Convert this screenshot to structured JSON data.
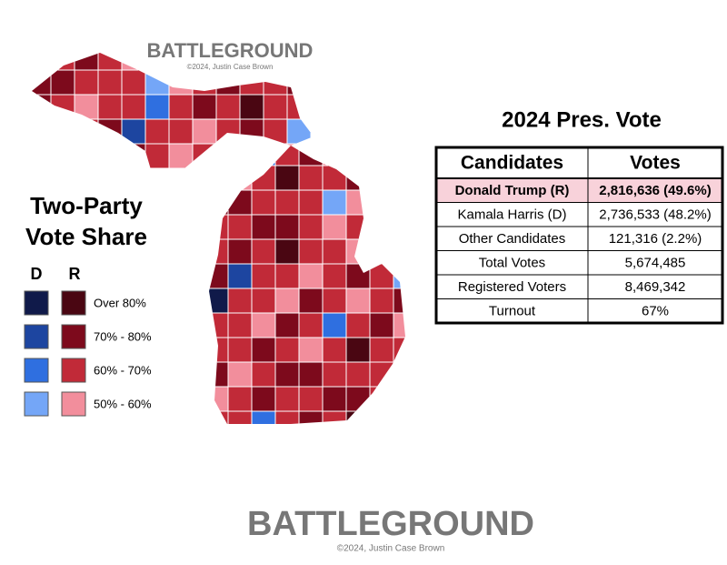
{
  "header": {
    "brand": "BATTLEGROUND",
    "credit": "©2024, Justin Case Brown"
  },
  "legend": {
    "title_lines": [
      "Two-Party",
      "Vote Share"
    ],
    "columns": [
      "D",
      "R"
    ],
    "rows": [
      {
        "label": "Over 80%",
        "d_color": "#101a4a",
        "r_color": "#4a0612"
      },
      {
        "label": "70% - 80%",
        "d_color": "#1d45a0",
        "r_color": "#7d0a1c"
      },
      {
        "label": "60% - 70%",
        "d_color": "#2f6fe0",
        "r_color": "#c12a38"
      },
      {
        "label": "50% - 60%",
        "d_color": "#74a6f7",
        "r_color": "#f28e9c"
      }
    ]
  },
  "table": {
    "title": "2024 Pres. Vote",
    "headers": [
      "Candidates",
      "Votes"
    ],
    "rows": [
      [
        "Donald Trump (R)",
        "2,816,636 (49.6%)"
      ],
      [
        "Kamala Harris (D)",
        "2,736,533 (48.2%)"
      ],
      [
        "Other Candidates",
        "121,316 (2.2%)"
      ],
      [
        "Total Votes",
        "5,674,485"
      ],
      [
        "Registered Voters",
        "8,469,342"
      ],
      [
        "Turnout",
        "67%"
      ]
    ]
  },
  "footer": {
    "brand": "BATTLEGROUND",
    "credit": "©2024, Justin Case Brown"
  }
}
